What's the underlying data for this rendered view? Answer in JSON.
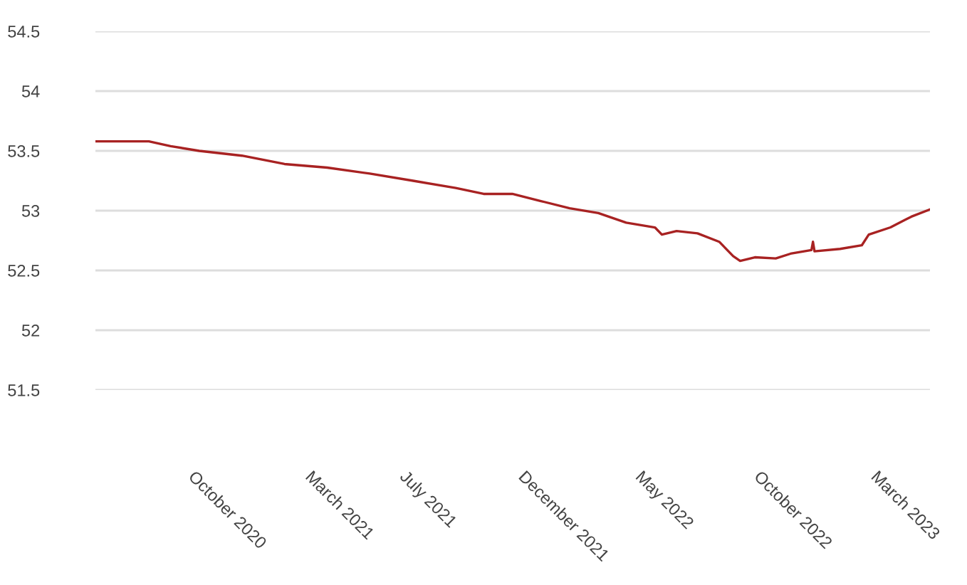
{
  "chart_data": {
    "type": "line",
    "grid": "y",
    "color": "#a82222",
    "x": [
      "2020-05-24",
      "2020-08-01",
      "2020-08-29",
      "2020-10-05",
      "2020-11-29",
      "2021-01-23",
      "2021-03-19",
      "2021-05-13",
      "2021-07-08",
      "2021-09-01",
      "2021-10-07",
      "2021-11-13",
      "2021-12-20",
      "2022-01-26",
      "2022-03-04",
      "2022-04-09",
      "2022-05-16",
      "2022-05-25",
      "2022-06-13",
      "2022-07-10",
      "2022-08-07",
      "2022-08-25",
      "2022-09-03",
      "2022-09-22",
      "2022-10-19",
      "2022-11-07",
      "2022-12-04",
      "2022-12-06",
      "2022-12-08",
      "2023-01-10",
      "2023-02-07",
      "2023-02-16",
      "2023-03-16",
      "2023-04-12",
      "2023-05-06"
    ],
    "values": [
      53.58,
      53.58,
      53.54,
      53.5,
      53.46,
      53.39,
      53.36,
      53.31,
      53.25,
      53.19,
      53.14,
      53.14,
      53.08,
      53.02,
      52.98,
      52.9,
      52.86,
      52.8,
      52.83,
      52.81,
      52.74,
      52.62,
      52.58,
      52.61,
      52.6,
      52.64,
      52.67,
      52.74,
      52.66,
      52.68,
      52.71,
      52.8,
      52.86,
      52.95,
      53.01
    ],
    "xlim": [
      "2020-05-24",
      "2023-05-06"
    ],
    "xticks": [
      {
        "value": "2020-10-01",
        "label": "October 2020"
      },
      {
        "value": "2021-03-01",
        "label": "March 2021"
      },
      {
        "value": "2021-07-01",
        "label": "July 2021"
      },
      {
        "value": "2021-12-01",
        "label": "December 2021"
      },
      {
        "value": "2022-05-01",
        "label": "May 2022"
      },
      {
        "value": "2022-10-01",
        "label": "October 2022"
      },
      {
        "value": "2023-03-01",
        "label": "March 2023"
      }
    ],
    "ylim": [
      51.5,
      54.5
    ],
    "yticks": [
      51.5,
      52,
      52.5,
      53,
      53.5,
      54,
      54.5
    ]
  }
}
